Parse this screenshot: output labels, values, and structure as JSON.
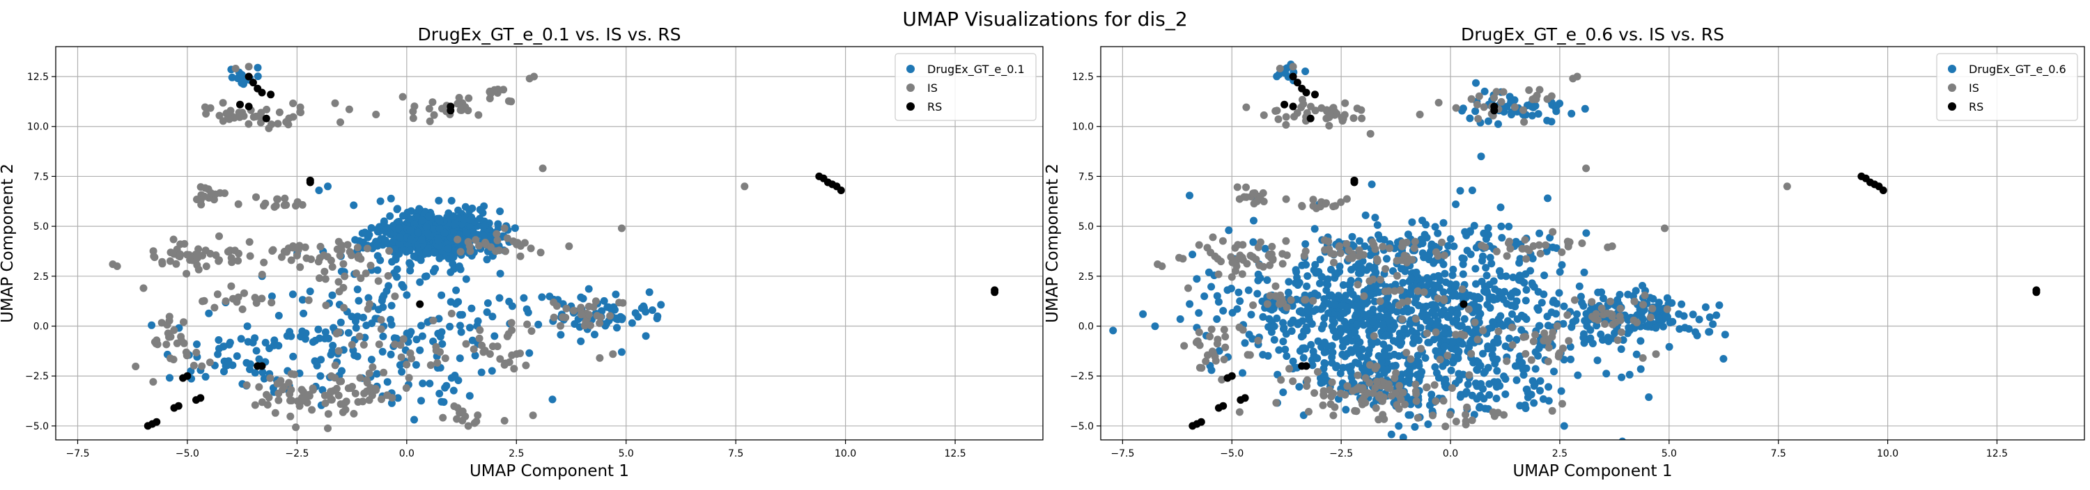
{
  "figure": {
    "suptitle": "UMAP Visualizations for dis_2"
  },
  "chart_data": [
    {
      "type": "scatter",
      "title": "DrugEx_GT_e_0.1 vs. IS vs. RS",
      "xlabel": "UMAP Component 1",
      "ylabel": "UMAP Component 2",
      "xlim": [
        -8.0,
        14.5
      ],
      "ylim": [
        -5.7,
        14.0
      ],
      "xticks": [
        -7.5,
        -5.0,
        -2.5,
        0.0,
        2.5,
        5.0,
        7.5,
        10.0,
        12.5
      ],
      "xtick_labels": [
        "−7.5",
        "−5.0",
        "−2.5",
        "0.0",
        "2.5",
        "5.0",
        "7.5",
        "10.0",
        "12.5"
      ],
      "yticks": [
        -5.0,
        -2.5,
        0.0,
        2.5,
        5.0,
        7.5,
        10.0,
        12.5
      ],
      "ytick_labels": [
        "−5.0",
        "−2.5",
        "0.0",
        "2.5",
        "5.0",
        "7.5",
        "10.0",
        "12.5"
      ],
      "grid": true,
      "legend_position": "top-right",
      "series": [
        {
          "name": "DrugEx_GT_e_0.1",
          "color": "#1f77b4",
          "clusters": [
            {
              "cx": 0.6,
              "cy": 4.6,
              "sx": 0.65,
              "sy": 0.55,
              "n": 650
            },
            {
              "cx": 0.0,
              "cy": 1.0,
              "sx": 1.3,
              "sy": 1.8,
              "n": 120
            },
            {
              "cx": -2.2,
              "cy": -1.2,
              "sx": 1.0,
              "sy": 1.4,
              "n": 80
            },
            {
              "cx": 4.2,
              "cy": 0.6,
              "sx": 0.8,
              "sy": 0.5,
              "n": 70
            },
            {
              "cx": -4.2,
              "cy": -1.5,
              "sx": 0.6,
              "sy": 0.6,
              "n": 30
            },
            {
              "cx": -3.7,
              "cy": 12.6,
              "sx": 0.2,
              "sy": 0.25,
              "n": 12
            },
            {
              "cx": 0.6,
              "cy": -2.8,
              "sx": 0.9,
              "sy": 0.7,
              "n": 25
            }
          ],
          "points": [
            [
              5.6,
              0.8
            ],
            [
              4.9,
              -1.3
            ],
            [
              1.2,
              3.0
            ],
            [
              -1.5,
              3.5
            ],
            [
              2.0,
              -0.5
            ],
            [
              -1.8,
              7.0
            ],
            [
              -2.0,
              6.8
            ],
            [
              0.3,
              2.2
            ],
            [
              -0.2,
              -3.6
            ],
            [
              1.0,
              2.7
            ]
          ]
        },
        {
          "name": "IS",
          "color": "#7f7f7f",
          "clusters": [
            {
              "cx": -3.3,
              "cy": 10.6,
              "sx": 0.8,
              "sy": 0.3,
              "n": 40
            },
            {
              "cx": 0.8,
              "cy": 11.0,
              "sx": 0.5,
              "sy": 0.4,
              "n": 22
            },
            {
              "cx": 2.0,
              "cy": 11.5,
              "sx": 0.2,
              "sy": 0.2,
              "n": 10
            },
            {
              "cx": -4.5,
              "cy": 6.5,
              "sx": 0.2,
              "sy": 0.3,
              "n": 14
            },
            {
              "cx": -3.1,
              "cy": 6.1,
              "sx": 0.3,
              "sy": 0.2,
              "n": 14
            },
            {
              "cx": -4.8,
              "cy": 3.5,
              "sx": 0.7,
              "sy": 0.4,
              "n": 45
            },
            {
              "cx": -2.0,
              "cy": 3.6,
              "sx": 0.8,
              "sy": 0.4,
              "n": 45
            },
            {
              "cx": -5.4,
              "cy": -1.0,
              "sx": 0.4,
              "sy": 0.8,
              "n": 28
            },
            {
              "cx": -3.8,
              "cy": 1.3,
              "sx": 0.4,
              "sy": 0.2,
              "n": 14
            },
            {
              "cx": -2.3,
              "cy": -3.5,
              "sx": 0.8,
              "sy": 0.6,
              "n": 55
            },
            {
              "cx": -1.2,
              "cy": -3.3,
              "sx": 0.6,
              "sy": 0.7,
              "n": 30
            },
            {
              "cx": 2.2,
              "cy": -0.9,
              "sx": 0.5,
              "sy": 0.6,
              "n": 25
            },
            {
              "cx": 2.0,
              "cy": 4.0,
              "sx": 0.6,
              "sy": 0.3,
              "n": 25
            },
            {
              "cx": 4.0,
              "cy": 0.6,
              "sx": 0.6,
              "sy": 0.4,
              "n": 28
            },
            {
              "cx": 1.2,
              "cy": -4.5,
              "sx": 0.6,
              "sy": 0.3,
              "n": 14
            },
            {
              "cx": 0.0,
              "cy": -1.0,
              "sx": 0.8,
              "sy": 1.2,
              "n": 25
            },
            {
              "cx": -1.4,
              "cy": 1.5,
              "sx": 0.5,
              "sy": 0.6,
              "n": 18
            }
          ],
          "points": [
            [
              -6.7,
              3.1
            ],
            [
              -6.6,
              3.0
            ],
            [
              7.7,
              7.0
            ],
            [
              4.9,
              4.9
            ],
            [
              3.1,
              7.9
            ],
            [
              2.8,
              12.4
            ],
            [
              2.9,
              12.5
            ],
            [
              -0.7,
              10.6
            ],
            [
              -3.9,
              12.9
            ],
            [
              -3.6,
              13.0
            ],
            [
              -4.0,
              2.0
            ],
            [
              -6.0,
              1.9
            ],
            [
              3.7,
              4.0
            ],
            [
              4.4,
              -1.6
            ],
            [
              4.7,
              -1.4
            ]
          ]
        },
        {
          "name": "RS",
          "color": "#000000",
          "clusters": [],
          "points": [
            [
              -5.8,
              -4.9
            ],
            [
              -5.9,
              -5.0
            ],
            [
              -5.7,
              -4.8
            ],
            [
              -5.3,
              -4.1
            ],
            [
              -5.2,
              -4.0
            ],
            [
              -4.7,
              -3.6
            ],
            [
              -4.8,
              -3.7
            ],
            [
              -5.1,
              -2.6
            ],
            [
              -5.0,
              -2.5
            ],
            [
              -3.6,
              12.5
            ],
            [
              -3.5,
              12.2
            ],
            [
              -3.4,
              11.9
            ],
            [
              -3.3,
              11.7
            ],
            [
              -3.1,
              11.6
            ],
            [
              -3.8,
              11.1
            ],
            [
              -3.6,
              11.0
            ],
            [
              -3.2,
              10.4
            ],
            [
              -2.2,
              7.3
            ],
            [
              -2.2,
              7.2
            ],
            [
              0.3,
              1.1
            ],
            [
              -3.4,
              -2.0
            ],
            [
              -3.3,
              -2.0
            ],
            [
              1.0,
              11.0
            ],
            [
              1.0,
              10.8
            ],
            [
              9.4,
              7.5
            ],
            [
              9.5,
              7.4
            ],
            [
              9.6,
              7.2
            ],
            [
              9.7,
              7.1
            ],
            [
              9.8,
              7.0
            ],
            [
              9.9,
              6.8
            ],
            [
              13.4,
              1.7
            ],
            [
              13.4,
              1.8
            ]
          ]
        }
      ]
    },
    {
      "type": "scatter",
      "title": "DrugEx_GT_e_0.6 vs. IS vs. RS",
      "xlabel": "UMAP Component 1",
      "ylabel": "UMAP Component 2",
      "xlim": [
        -8.0,
        14.5
      ],
      "ylim": [
        -5.7,
        14.0
      ],
      "xticks": [
        -7.5,
        -5.0,
        -2.5,
        0.0,
        2.5,
        5.0,
        7.5,
        10.0,
        12.5
      ],
      "xtick_labels": [
        "−7.5",
        "−5.0",
        "−2.5",
        "0.0",
        "2.5",
        "5.0",
        "7.5",
        "10.0",
        "12.5"
      ],
      "yticks": [
        -5.0,
        -2.5,
        0.0,
        2.5,
        5.0,
        7.5,
        10.0,
        12.5
      ],
      "ytick_labels": [
        "−5.0",
        "−2.5",
        "0.0",
        "2.5",
        "5.0",
        "7.5",
        "10.0",
        "12.5"
      ],
      "grid": true,
      "legend_position": "top-right",
      "series": [
        {
          "name": "DrugEx_GT_e_0.6",
          "color": "#1f77b4",
          "clusters": [
            {
              "cx": -0.5,
              "cy": 0.2,
              "sx": 1.9,
              "sy": 2.1,
              "n": 850
            },
            {
              "cx": 4.3,
              "cy": 0.5,
              "sx": 0.8,
              "sy": 0.6,
              "n": 140
            },
            {
              "cx": -3.0,
              "cy": 1.0,
              "sx": 1.4,
              "sy": 1.3,
              "n": 150
            },
            {
              "cx": 1.5,
              "cy": 10.9,
              "sx": 0.6,
              "sy": 0.4,
              "n": 50
            },
            {
              "cx": -1.0,
              "cy": 4.0,
              "sx": 1.2,
              "sy": 0.6,
              "n": 80
            },
            {
              "cx": -1.6,
              "cy": -3.2,
              "sx": 0.8,
              "sy": 0.8,
              "n": 70
            },
            {
              "cx": 1.3,
              "cy": -3.3,
              "sx": 0.7,
              "sy": 0.6,
              "n": 30
            },
            {
              "cx": -3.7,
              "cy": 12.6,
              "sx": 0.2,
              "sy": 0.25,
              "n": 12
            }
          ],
          "points": [
            [
              6.0,
              0.1
            ],
            [
              5.6,
              -0.3
            ],
            [
              0.5,
              6.8
            ],
            [
              0.7,
              8.5
            ],
            [
              -1.8,
              7.1
            ],
            [
              -4.5,
              6.5
            ],
            [
              -3.0,
              6.1
            ]
          ]
        },
        {
          "name": "IS",
          "color": "#7f7f7f",
          "clusters": [
            {
              "cx": -3.3,
              "cy": 10.6,
              "sx": 0.8,
              "sy": 0.3,
              "n": 40
            },
            {
              "cx": 0.8,
              "cy": 11.0,
              "sx": 0.5,
              "sy": 0.4,
              "n": 18
            },
            {
              "cx": 2.0,
              "cy": 11.5,
              "sx": 0.2,
              "sy": 0.2,
              "n": 8
            },
            {
              "cx": -4.5,
              "cy": 6.5,
              "sx": 0.2,
              "sy": 0.3,
              "n": 14
            },
            {
              "cx": -3.1,
              "cy": 6.1,
              "sx": 0.3,
              "sy": 0.2,
              "n": 14
            },
            {
              "cx": -4.8,
              "cy": 3.5,
              "sx": 0.7,
              "sy": 0.4,
              "n": 45
            },
            {
              "cx": -2.0,
              "cy": 3.6,
              "sx": 0.8,
              "sy": 0.4,
              "n": 45
            },
            {
              "cx": -5.4,
              "cy": -1.0,
              "sx": 0.4,
              "sy": 0.8,
              "n": 28
            },
            {
              "cx": -3.8,
              "cy": 1.3,
              "sx": 0.4,
              "sy": 0.2,
              "n": 14
            },
            {
              "cx": -2.3,
              "cy": -3.5,
              "sx": 0.8,
              "sy": 0.6,
              "n": 55
            },
            {
              "cx": -1.2,
              "cy": -3.3,
              "sx": 0.6,
              "sy": 0.7,
              "n": 30
            },
            {
              "cx": 2.2,
              "cy": -0.9,
              "sx": 0.5,
              "sy": 0.6,
              "n": 25
            },
            {
              "cx": 2.0,
              "cy": 4.0,
              "sx": 0.6,
              "sy": 0.3,
              "n": 25
            },
            {
              "cx": 4.0,
              "cy": 0.6,
              "sx": 0.6,
              "sy": 0.4,
              "n": 28
            },
            {
              "cx": 1.2,
              "cy": -4.5,
              "sx": 0.6,
              "sy": 0.3,
              "n": 14
            },
            {
              "cx": 0.0,
              "cy": -1.0,
              "sx": 0.8,
              "sy": 1.2,
              "n": 25
            },
            {
              "cx": -1.4,
              "cy": 1.5,
              "sx": 0.5,
              "sy": 0.6,
              "n": 18
            }
          ],
          "points": [
            [
              -6.7,
              3.1
            ],
            [
              -6.6,
              3.0
            ],
            [
              7.7,
              7.0
            ],
            [
              4.9,
              4.9
            ],
            [
              3.1,
              7.9
            ],
            [
              2.8,
              12.4
            ],
            [
              2.9,
              12.5
            ],
            [
              -0.7,
              10.6
            ],
            [
              -3.9,
              12.9
            ],
            [
              -3.6,
              13.0
            ],
            [
              -4.0,
              2.0
            ],
            [
              -6.0,
              1.9
            ],
            [
              3.7,
              4.0
            ],
            [
              4.4,
              -1.6
            ],
            [
              4.7,
              -1.4
            ]
          ]
        },
        {
          "name": "RS",
          "color": "#000000",
          "clusters": [],
          "points": [
            [
              -5.8,
              -4.9
            ],
            [
              -5.9,
              -5.0
            ],
            [
              -5.7,
              -4.8
            ],
            [
              -5.3,
              -4.1
            ],
            [
              -5.2,
              -4.0
            ],
            [
              -4.7,
              -3.6
            ],
            [
              -4.8,
              -3.7
            ],
            [
              -5.1,
              -2.6
            ],
            [
              -5.0,
              -2.5
            ],
            [
              -3.6,
              12.5
            ],
            [
              -3.5,
              12.2
            ],
            [
              -3.4,
              11.9
            ],
            [
              -3.3,
              11.7
            ],
            [
              -3.1,
              11.6
            ],
            [
              -3.8,
              11.1
            ],
            [
              -3.6,
              11.0
            ],
            [
              -3.2,
              10.4
            ],
            [
              -2.2,
              7.3
            ],
            [
              -2.2,
              7.2
            ],
            [
              0.3,
              1.1
            ],
            [
              -3.4,
              -2.0
            ],
            [
              -3.3,
              -2.0
            ],
            [
              1.0,
              11.0
            ],
            [
              1.0,
              10.8
            ],
            [
              9.4,
              7.5
            ],
            [
              9.5,
              7.4
            ],
            [
              9.6,
              7.2
            ],
            [
              9.7,
              7.1
            ],
            [
              9.8,
              7.0
            ],
            [
              9.9,
              6.8
            ],
            [
              13.4,
              1.7
            ],
            [
              13.4,
              1.8
            ]
          ]
        }
      ]
    }
  ]
}
